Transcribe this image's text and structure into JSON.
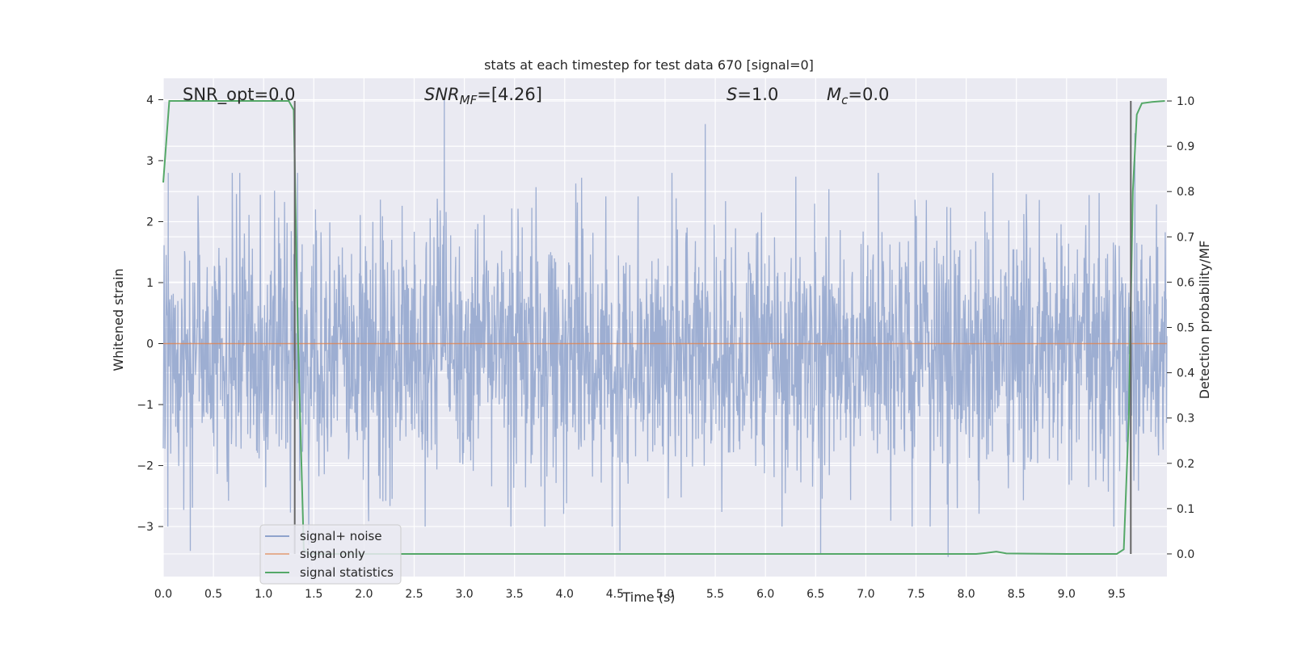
{
  "chart_data": {
    "type": "line",
    "title": "stats at each timestep for test data 670 [signal=0]",
    "xlabel": "Time (s)",
    "ylabel_left": "Whitened strain",
    "ylabel_right": "Detection probability/MF",
    "xlim": [
      0.0,
      10.0
    ],
    "ylim_left": [
      -3.82,
      4.35
    ],
    "ylim_right": [
      -0.05,
      1.05
    ],
    "x_ticks": [
      "0.0",
      "0.5",
      "1.0",
      "1.5",
      "2.0",
      "2.5",
      "3.0",
      "3.5",
      "4.0",
      "4.5",
      "5.0",
      "5.5",
      "6.0",
      "6.5",
      "7.0",
      "7.5",
      "8.0",
      "8.5",
      "9.0",
      "9.5"
    ],
    "y_left_ticks": [
      "−3",
      "−2",
      "−1",
      "0",
      "1",
      "2",
      "3",
      "4"
    ],
    "y_right_ticks": [
      "0.0",
      "0.1",
      "0.2",
      "0.3",
      "0.4",
      "0.5",
      "0.6",
      "0.7",
      "0.8",
      "0.9",
      "1.0"
    ],
    "grid": true,
    "legend_position": "lower-left",
    "colors": {
      "noise": "#8fa3cc",
      "signal_only": "#dd8452",
      "statistics": "#55a868",
      "vline": "#666666",
      "background": "#eaeaf2",
      "grid": "#ffffff"
    },
    "annotations": {
      "snr_opt": "SNR_opt=0.0",
      "snr_mf_prefix": "SNR",
      "snr_mf_sub": "MF",
      "snr_mf_value": "=[4.26]",
      "s_prefix": "S",
      "s_value": "=1.0",
      "mc_prefix": "M",
      "mc_sub": "c",
      "mc_value": "=0.0"
    },
    "vlines": [
      1.31,
      9.64
    ],
    "series": [
      {
        "name": "signal+ noise",
        "axis": "left",
        "description_range": [
          -3.5,
          4.0
        ],
        "notable_peaks": [
          [
            2.8,
            4.0
          ],
          [
            5.4,
            3.6
          ],
          [
            9.68,
            3.45
          ],
          [
            0.05,
            2.8
          ]
        ],
        "notable_troughs": [
          [
            0.27,
            -3.4
          ],
          [
            1.45,
            -3.3
          ],
          [
            4.55,
            -3.4
          ],
          [
            6.55,
            -3.45
          ],
          [
            7.82,
            -3.5
          ]
        ]
      },
      {
        "name": "signal only",
        "axis": "left",
        "x": [
          0.0,
          10.0
        ],
        "y": [
          0.0,
          0.0
        ]
      },
      {
        "name": "signal statistics",
        "axis": "right",
        "x": [
          0.0,
          0.06,
          0.12,
          0.3,
          0.6,
          1.0,
          1.25,
          1.3,
          1.34,
          1.4,
          1.45,
          2.0,
          3.0,
          5.0,
          7.0,
          8.1,
          8.2,
          8.3,
          8.4,
          9.0,
          9.5,
          9.57,
          9.62,
          9.66,
          9.7,
          9.75,
          9.85,
          9.98
        ],
        "y": [
          0.82,
          1.0,
          1.0,
          1.0,
          1.0,
          1.0,
          1.0,
          0.98,
          0.5,
          0.01,
          0.0,
          0.0,
          0.0,
          0.0,
          0.0,
          0.0,
          0.002,
          0.005,
          0.001,
          0.0,
          0.0,
          0.01,
          0.3,
          0.8,
          0.97,
          0.995,
          0.998,
          1.0
        ]
      }
    ]
  }
}
